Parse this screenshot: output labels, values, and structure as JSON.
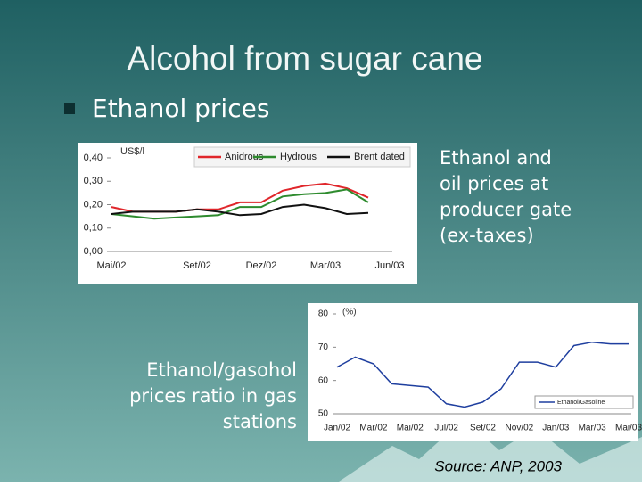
{
  "title": "Alcohol from sugar cane",
  "bullet": "Ethanol prices",
  "caption_prices": [
    "Ethanol and",
    "oil prices at",
    "producer gate",
    "(ex-taxes)"
  ],
  "caption_ratio": [
    "Ethanol/gasohol",
    "prices ratio in gas",
    "stations"
  ],
  "source": "Source: ANP, 2003",
  "chart_data": [
    {
      "type": "line",
      "y_label": "US$/l",
      "categories": [
        "Mai/02",
        null,
        null,
        null,
        "Set/02",
        null,
        null,
        "Dez/02",
        null,
        null,
        "Mar/03",
        null,
        null,
        "Jun/03"
      ],
      "series": [
        {
          "name": "Anidrous",
          "color": "#e0262b",
          "values": [
            0.19,
            0.17,
            0.17,
            0.17,
            0.18,
            0.18,
            0.21,
            0.21,
            0.26,
            0.28,
            0.29,
            0.27,
            0.23,
            null
          ]
        },
        {
          "name": "Hydrous",
          "color": "#2e8b2e",
          "values": [
            0.16,
            0.15,
            0.14,
            0.145,
            0.15,
            0.155,
            0.19,
            0.19,
            0.235,
            0.245,
            0.25,
            0.265,
            0.21,
            null
          ]
        },
        {
          "name": "Brent dated",
          "color": "#111111",
          "values": [
            0.16,
            0.17,
            0.17,
            0.17,
            0.18,
            0.17,
            0.155,
            0.16,
            0.19,
            0.2,
            0.185,
            0.16,
            0.165,
            null
          ]
        }
      ],
      "ylim": [
        0,
        0.4
      ],
      "yticks": [
        {
          "value": 0,
          "label": "0,00"
        },
        {
          "value": 0.1,
          "label": "0,10"
        },
        {
          "value": 0.2,
          "label": "0,20"
        },
        {
          "value": 0.3,
          "label": "0,30"
        },
        {
          "value": 0.4,
          "label": "0,40"
        }
      ],
      "legend": "top"
    },
    {
      "type": "line",
      "y_label": "(%)",
      "categories": [
        "Jan/02",
        null,
        "Mar/02",
        null,
        "Mai/02",
        null,
        "Jul/02",
        null,
        "Set/02",
        null,
        "Nov/02",
        null,
        "Jan/03",
        null,
        "Mar/03",
        null,
        "Mai/03"
      ],
      "series": [
        {
          "name": "Ethanol/Gasoline",
          "color": "#1f3f9f",
          "values": [
            64,
            67,
            65,
            59,
            58.5,
            58,
            53,
            52,
            53.5,
            57.5,
            65.5,
            65.5,
            64,
            70.5,
            71.5,
            71,
            71
          ]
        }
      ],
      "ylim": [
        50,
        80
      ],
      "yticks": [
        50,
        60,
        70,
        80
      ],
      "legend": "bottom right"
    }
  ]
}
